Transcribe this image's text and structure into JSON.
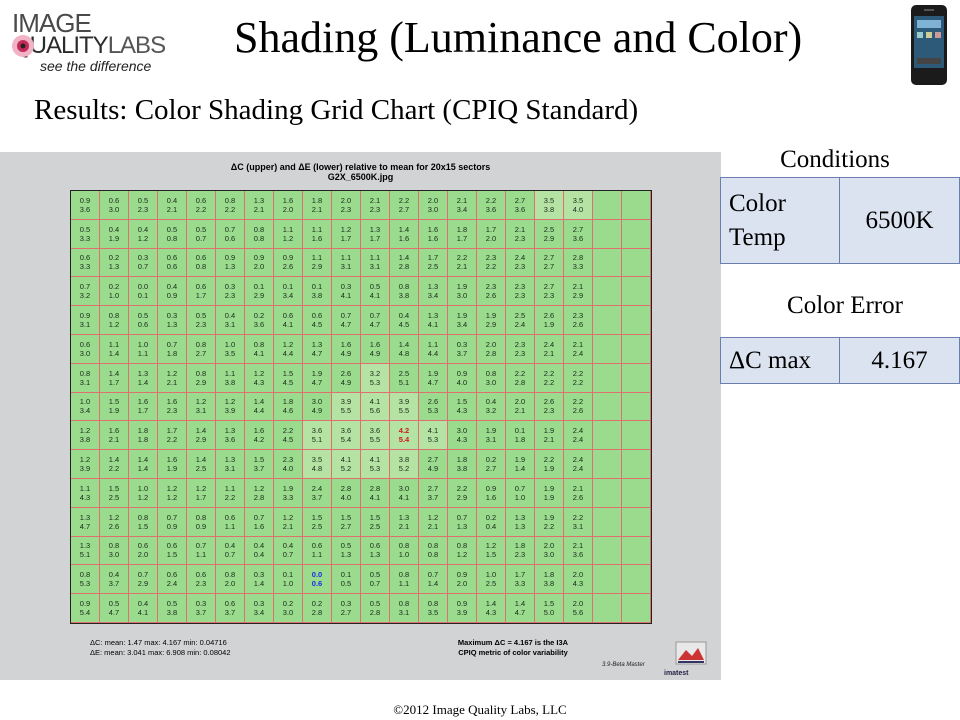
{
  "logo": {
    "line1": "IMAGE",
    "line2a": "QUALITY",
    "line2b": "LABS",
    "tagline": "see the difference"
  },
  "title": "Shading (Luminance and Color)",
  "subtitle": "Results:  Color Shading Grid Chart (CPIQ Standard)",
  "chart": {
    "header_line1": "ΔC (upper) and ΔE (lower) relative to mean for 20x15 sectors",
    "header_line2": "G2X_6500K.jpg",
    "stats_line1": "ΔC:  mean:  1.47   max:  4.167   min:  0.04716",
    "stats_line2": "ΔE:  mean:  3.041   max:  6.908   min:  0.08042",
    "max_note_line1": "Maximum ΔC = 4.167 is the I3A",
    "max_note_line2": "CPIQ metric of color variability",
    "version": "3.9-Beta  Master",
    "brand": "imatest"
  },
  "chart_data": {
    "type": "table",
    "columns": 20,
    "rows_count": 15,
    "dC": [
      [
        "0.9",
        "0.6",
        "0.5",
        "0.4",
        "0.6",
        "0.8",
        "1.3",
        "1.6",
        "1.8",
        "2.0",
        "2.1",
        "2.2",
        "2.0",
        "2.1",
        "2.2",
        "2.7",
        "3.5",
        "3.5",
        "",
        ""
      ],
      [
        "0.5",
        "0.4",
        "0.4",
        "0.5",
        "0.5",
        "0.7",
        "0.8",
        "1.1",
        "1.1",
        "1.2",
        "1.3",
        "1.4",
        "1.6",
        "1.8",
        "1.7",
        "2.1",
        "2.5",
        "2.7",
        "",
        ""
      ],
      [
        "0.6",
        "0.2",
        "0.3",
        "0.6",
        "0.6",
        "0.9",
        "0.9",
        "0.9",
        "1.1",
        "1.1",
        "1.1",
        "1.4",
        "1.7",
        "2.2",
        "2.3",
        "2.4",
        "2.7",
        "2.8",
        "",
        ""
      ],
      [
        "0.7",
        "0.2",
        "0.0",
        "0.4",
        "0.6",
        "0.3",
        "0.1",
        "0.1",
        "0.1",
        "0.3",
        "0.5",
        "0.8",
        "1.3",
        "1.9",
        "2.3",
        "2.3",
        "2.7",
        "2.1",
        "",
        ""
      ],
      [
        "0.9",
        "0.8",
        "0.5",
        "0.3",
        "0.5",
        "0.4",
        "0.2",
        "0.6",
        "0.6",
        "0.7",
        "0.7",
        "0.4",
        "1.3",
        "1.9",
        "1.9",
        "2.5",
        "2.6",
        "2.3",
        "",
        ""
      ],
      [
        "0.6",
        "1.1",
        "1.0",
        "0.7",
        "0.8",
        "1.0",
        "0.8",
        "1.2",
        "1.3",
        "1.6",
        "1.6",
        "1.4",
        "1.1",
        "0.3",
        "2.0",
        "2.3",
        "2.4",
        "2.1",
        "",
        ""
      ],
      [
        "0.8",
        "1.4",
        "1.3",
        "1.2",
        "0.8",
        "1.1",
        "1.2",
        "1.5",
        "1.9",
        "2.6",
        "3.2",
        "2.5",
        "1.9",
        "0.9",
        "0.8",
        "2.2",
        "2.2",
        "2.2",
        "",
        ""
      ],
      [
        "1.0",
        "1.5",
        "1.6",
        "1.6",
        "1.2",
        "1.2",
        "1.4",
        "1.8",
        "3.0",
        "3.9",
        "4.1",
        "3.9",
        "2.6",
        "1.5",
        "0.4",
        "2.0",
        "2.6",
        "2.2",
        "",
        ""
      ],
      [
        "1.2",
        "1.6",
        "1.8",
        "1.7",
        "1.4",
        "1.3",
        "1.6",
        "2.2",
        "3.6",
        "3.6",
        "3.6",
        "4.2",
        "4.1",
        "3.0",
        "1.9",
        "0.1",
        "1.9",
        "2.4",
        "",
        ""
      ],
      [
        "1.2",
        "1.4",
        "1.4",
        "1.6",
        "1.4",
        "1.3",
        "1.5",
        "2.3",
        "3.5",
        "4.1",
        "4.1",
        "3.8",
        "2.7",
        "1.8",
        "0.2",
        "1.9",
        "2.2",
        "2.4",
        "",
        ""
      ],
      [
        "1.1",
        "1.5",
        "1.0",
        "1.2",
        "1.2",
        "1.1",
        "1.2",
        "1.9",
        "2.4",
        "2.8",
        "2.8",
        "3.0",
        "2.7",
        "2.2",
        "0.9",
        "0.7",
        "1.9",
        "2.1",
        "",
        ""
      ],
      [
        "1.3",
        "1.2",
        "0.8",
        "0.7",
        "0.8",
        "0.6",
        "0.7",
        "1.2",
        "1.5",
        "1.5",
        "1.5",
        "1.3",
        "1.2",
        "0.7",
        "0.2",
        "1.3",
        "1.9",
        "2.2",
        "",
        ""
      ],
      [
        "1.3",
        "0.8",
        "0.6",
        "0.6",
        "0.7",
        "0.4",
        "0.4",
        "0.4",
        "0.6",
        "0.5",
        "0.6",
        "0.8",
        "0.8",
        "0.8",
        "1.2",
        "1.8",
        "2.0",
        "2.1",
        "",
        ""
      ],
      [
        "0.8",
        "0.4",
        "0.7",
        "0.6",
        "0.6",
        "0.8",
        "0.3",
        "0.1",
        "0.0",
        "0.1",
        "0.5",
        "0.8",
        "0.7",
        "0.9",
        "1.0",
        "1.7",
        "1.8",
        "2.0",
        "",
        ""
      ],
      [
        "0.9",
        "0.5",
        "0.4",
        "0.5",
        "0.3",
        "0.6",
        "0.3",
        "0.2",
        "0.2",
        "0.3",
        "0.5",
        "0.8",
        "0.8",
        "0.9",
        "1.4",
        "1.4",
        "1.5",
        "2.0",
        "",
        ""
      ]
    ],
    "dE": [
      [
        "3.6",
        "3.0",
        "2.3",
        "2.1",
        "2.2",
        "2.2",
        "2.1",
        "2.0",
        "2.1",
        "2.3",
        "2.3",
        "2.7",
        "3.0",
        "3.4",
        "3.6",
        "3.6",
        "3.8",
        "4.0",
        "",
        ""
      ],
      [
        "3.3",
        "1.9",
        "1.2",
        "0.8",
        "0.7",
        "0.6",
        "0.8",
        "1.2",
        "1.6",
        "1.7",
        "1.7",
        "1.6",
        "1.6",
        "1.7",
        "2.0",
        "2.3",
        "2.9",
        "3.6",
        "",
        ""
      ],
      [
        "3.3",
        "1.3",
        "0.7",
        "0.6",
        "0.8",
        "1.3",
        "2.0",
        "2.6",
        "2.9",
        "3.1",
        "3.1",
        "2.8",
        "2.5",
        "2.1",
        "2.2",
        "2.3",
        "2.7",
        "3.3",
        "",
        ""
      ],
      [
        "3.2",
        "1.0",
        "0.1",
        "0.9",
        "1.7",
        "2.3",
        "2.9",
        "3.4",
        "3.8",
        "4.1",
        "4.1",
        "3.8",
        "3.4",
        "3.0",
        "2.6",
        "2.3",
        "2.3",
        "2.9",
        "",
        ""
      ],
      [
        "3.1",
        "1.2",
        "0.6",
        "1.3",
        "2.3",
        "3.1",
        "3.6",
        "4.1",
        "4.5",
        "4.7",
        "4.7",
        "4.5",
        "4.1",
        "3.4",
        "2.9",
        "2.4",
        "1.9",
        "2.6",
        "",
        ""
      ],
      [
        "3.0",
        "1.4",
        "1.1",
        "1.8",
        "2.7",
        "3.5",
        "4.1",
        "4.4",
        "4.7",
        "4.9",
        "4.9",
        "4.8",
        "4.4",
        "3.7",
        "2.8",
        "2.3",
        "2.1",
        "2.4",
        "",
        ""
      ],
      [
        "3.1",
        "1.7",
        "1.4",
        "2.1",
        "2.9",
        "3.8",
        "4.3",
        "4.5",
        "4.7",
        "4.9",
        "5.3",
        "5.1",
        "4.7",
        "4.0",
        "3.0",
        "2.8",
        "2.2",
        "2.2",
        "",
        ""
      ],
      [
        "3.4",
        "1.9",
        "1.7",
        "2.3",
        "3.1",
        "3.9",
        "4.4",
        "4.6",
        "4.9",
        "5.5",
        "5.6",
        "5.5",
        "5.3",
        "4.3",
        "3.2",
        "2.1",
        "2.3",
        "2.6",
        "",
        ""
      ],
      [
        "3.8",
        "2.1",
        "1.8",
        "2.2",
        "2.9",
        "3.6",
        "4.2",
        "4.5",
        "5.1",
        "5.4",
        "5.5",
        "5.4",
        "5.3",
        "4.3",
        "3.1",
        "1.8",
        "2.1",
        "2.4",
        "",
        ""
      ],
      [
        "3.9",
        "2.2",
        "1.4",
        "1.9",
        "2.5",
        "3.1",
        "3.7",
        "4.0",
        "4.8",
        "5.2",
        "5.3",
        "5.2",
        "4.9",
        "3.8",
        "2.7",
        "1.4",
        "1.9",
        "2.4",
        "",
        ""
      ],
      [
        "4.3",
        "2.5",
        "1.2",
        "1.2",
        "1.7",
        "2.2",
        "2.8",
        "3.3",
        "3.7",
        "4.0",
        "4.1",
        "4.1",
        "3.7",
        "2.9",
        "1.6",
        "1.0",
        "1.9",
        "2.6",
        "",
        ""
      ],
      [
        "4.7",
        "2.6",
        "1.5",
        "0.9",
        "0.9",
        "1.1",
        "1.6",
        "2.1",
        "2.5",
        "2.7",
        "2.5",
        "2.1",
        "2.1",
        "1.3",
        "0.4",
        "1.3",
        "2.2",
        "3.1",
        "",
        ""
      ],
      [
        "5.1",
        "3.0",
        "2.0",
        "1.5",
        "1.1",
        "0.7",
        "0.4",
        "0.7",
        "1.1",
        "1.3",
        "1.3",
        "1.0",
        "0.8",
        "1.2",
        "1.5",
        "2.3",
        "3.0",
        "3.6",
        "",
        ""
      ],
      [
        "5.3",
        "3.7",
        "2.9",
        "2.4",
        "2.3",
        "2.0",
        "1.4",
        "1.0",
        "0.6",
        "0.5",
        "0.7",
        "1.1",
        "1.4",
        "2.0",
        "2.5",
        "3.3",
        "3.8",
        "4.3",
        "",
        ""
      ],
      [
        "5.4",
        "4.7",
        "4.1",
        "3.8",
        "3.7",
        "3.7",
        "3.4",
        "3.0",
        "2.8",
        "2.7",
        "2.8",
        "3.1",
        "3.5",
        "3.9",
        "4.3",
        "4.7",
        "5.0",
        "5.6",
        "",
        ""
      ]
    ]
  },
  "conditions": {
    "title": "Conditions",
    "label": "Color Temp",
    "value": "6500K"
  },
  "color_error": {
    "title": "Color Error",
    "label": "ΔC max",
    "value": "4.167"
  },
  "footer": "©2012 Image Quality Labs, LLC"
}
